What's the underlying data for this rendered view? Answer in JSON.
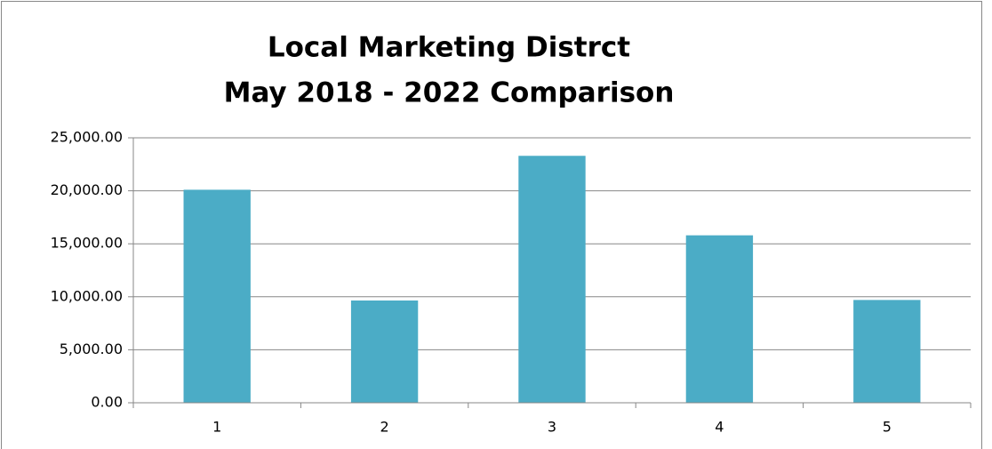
{
  "chart_data": {
    "type": "bar",
    "title": "Local Marketing Distrct",
    "subtitle": "May 2018 - 2022 Comparison",
    "categories": [
      "1",
      "2",
      "3",
      "4",
      "5"
    ],
    "values": [
      20100,
      9650,
      23300,
      15800,
      9700
    ],
    "color": "#4bacc6",
    "ylim": [
      0,
      25000
    ],
    "yticks": [
      {
        "value": 0,
        "label": "0.00"
      },
      {
        "value": 5000,
        "label": "5,000.00"
      },
      {
        "value": 10000,
        "label": "10,000.00"
      },
      {
        "value": 15000,
        "label": "15,000.00"
      },
      {
        "value": 20000,
        "label": "20,000.00"
      },
      {
        "value": 25000,
        "label": "25,000.00"
      }
    ],
    "grid": true
  }
}
